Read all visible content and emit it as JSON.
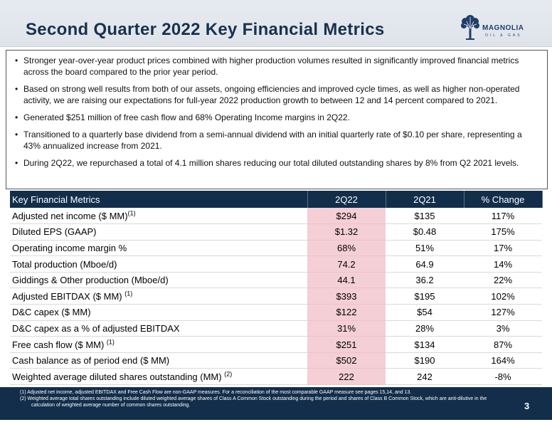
{
  "header": {
    "title": "Second Quarter 2022 Key Financial Metrics",
    "logo_name": "MAGNOLIA",
    "logo_sub": "OIL & GAS"
  },
  "bullets": [
    "Stronger year-over-year product prices combined with higher production volumes resulted in significantly improved financial metrics across the board compared to the prior year period.",
    "Based on strong well results from both of our assets, ongoing efficiencies and improved cycle times, as well as higher non-operated activity, we are raising our expectations for full-year 2022 production growth to between 12 and 14 percent compared to 2021.",
    "Generated $251 million of free cash flow and 68% Operating Income margins in 2Q22.",
    "Transitioned to a quarterly base dividend from a semi-annual dividend with an initial quarterly rate of $0.10 per share, representing a 43% annualized increase from 2021.",
    "During 2Q22, we repurchased a total of 4.1 million shares reducing our total diluted outstanding shares by 8% from Q2 2021 levels."
  ],
  "table": {
    "headers": [
      "Key Financial Metrics",
      "2Q22",
      "2Q21",
      "% Change"
    ],
    "rows": [
      {
        "label": "Adjusted net income ($ MM)",
        "note": "(1)",
        "q22": "$294",
        "q21": "$135",
        "chg": "117%"
      },
      {
        "label": "Diluted EPS (GAAP)",
        "note": "",
        "q22": "$1.32",
        "q21": "$0.48",
        "chg": "175%"
      },
      {
        "label": "Operating income margin %",
        "note": "",
        "q22": "68%",
        "q21": "51%",
        "chg": "17%"
      },
      {
        "label": "Total production (Mboe/d)",
        "note": "",
        "q22": "74.2",
        "q21": "64.9",
        "chg": "14%"
      },
      {
        "label": "Giddings & Other production (Mboe/d)",
        "note": "",
        "q22": "44.1",
        "q21": "36.2",
        "chg": "22%"
      },
      {
        "label": "Adjusted EBITDAX ($ MM) ",
        "note": "(1)",
        "q22": "$393",
        "q21": "$195",
        "chg": "102%"
      },
      {
        "label": "D&C capex ($ MM)",
        "note": "",
        "q22": "$122",
        "q21": "$54",
        "chg": "127%"
      },
      {
        "label": "D&C capex as a % of adjusted EBITDAX",
        "note": "",
        "q22": "31%",
        "q21": "28%",
        "chg": "3%"
      },
      {
        "label": "Free cash flow ($ MM) ",
        "note": "(1)",
        "q22": "$251",
        "q21": "$134",
        "chg": "87%"
      },
      {
        "label": "Cash balance as of period end ($ MM)",
        "note": "",
        "q22": "$502",
        "q21": "$190",
        "chg": "164%"
      },
      {
        "label": "Weighted average diluted shares outstanding (MM) ",
        "note": "(2)",
        "q22": "222",
        "q21": "242",
        "chg": "-8%"
      }
    ]
  },
  "footnotes": [
    "(1)  Adjusted net income, adjusted EBITDAX and Free Cash Flow are non-GAAP measures. For a reconciliation of the most comparable GAAP measure see pages 15,14, and 13.",
    "(2)  Weighted average total shares outstanding include diluted weighted average shares of Class A Common Stock outstanding during the period and shares of Class B Common Stock, which are anti-dilutive in the calculation of weighted average number of common shares outstanding."
  ],
  "page_number": "3",
  "colors": {
    "navy": "#122e4b",
    "title": "#18314f",
    "highlight": "#f4cfd6",
    "header_bg": "#e3e8ee"
  }
}
